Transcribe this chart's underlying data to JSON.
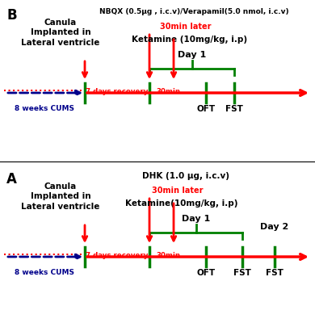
{
  "panel_A": {
    "label": "A",
    "dhk_text": "DHK (1.0 μg, i.c.v)",
    "ketamine_text": "Ketamine(10mg/kg, i.p)",
    "canula_text": "Canula\nImplanted in\nLateral ventricle",
    "cums_text": "8 weeks CUMS",
    "recovery_text": "7 days recovery",
    "min30_text": "30min",
    "later_text": "30min later",
    "oft_text": "OFT",
    "fst1_text": "FST",
    "fst2_text": "FST",
    "day1_text": "Day 1",
    "day2_text": "Day 2"
  },
  "panel_B": {
    "label": "B",
    "drug_text": "NBQX (0.5μg , i.c.v)/Verapamil(5.0 nmol, i.c.v)",
    "ketamine_text": "Ketamine (10mg/kg, i.p)",
    "canula_text": "Canula\nImplanted in\nLateral ventricle",
    "cums_text": "8 weeks CUMS",
    "recovery_text": "7 days recovery",
    "min30_text": "30min",
    "later_text": "30min later",
    "oft_text": "OFT",
    "fst_text": "FST",
    "day1_text": "Day 1"
  },
  "colors": {
    "red": "#FF0000",
    "green": "#008000",
    "blue_dark": "#00008B",
    "black": "#000000",
    "white": "#FFFFFF"
  }
}
